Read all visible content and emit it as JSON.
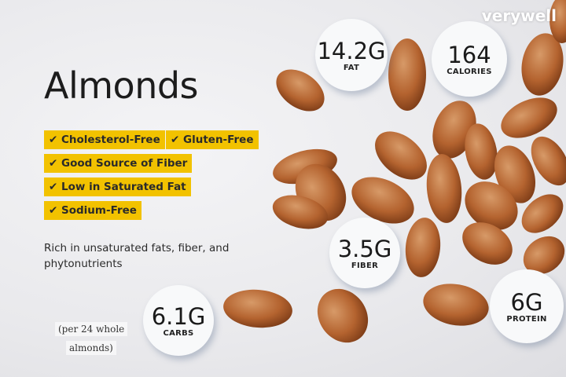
{
  "title": "Almonds",
  "logo": "verywell",
  "tags": [
    "Cholesterol-Free",
    "Gluten-Free",
    "Good Source of Fiber",
    "Low in Saturated Fat",
    "Sodium-Free"
  ],
  "check_icon": "✔",
  "description": "Rich in unsaturated fats, fiber, and phytonutrients",
  "serving_note_line1": "(per 24 whole",
  "serving_note_line2": "almonds)",
  "stats": {
    "fat": {
      "value": "14.2G",
      "label": "FAT"
    },
    "calories": {
      "value": "164",
      "label": "CALORIES"
    },
    "fiber": {
      "value": "3.5G",
      "label": "FIBER"
    },
    "carbs": {
      "value": "6.1G",
      "label": "CARBS"
    },
    "protein": {
      "value": "6G",
      "label": "PROTEIN"
    }
  },
  "colors": {
    "tag": "#f2c200",
    "almond": "#b8693a"
  }
}
